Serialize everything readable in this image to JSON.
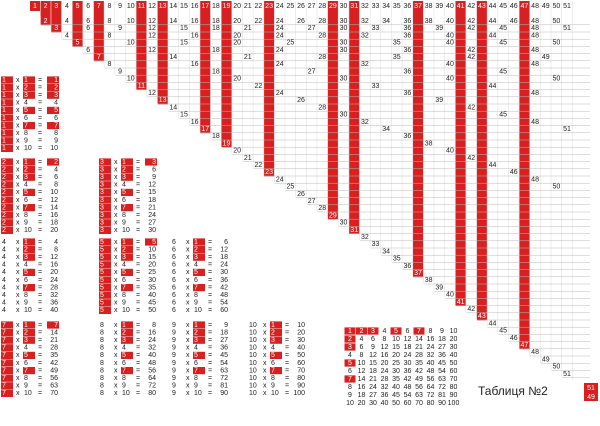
{
  "sheet": {
    "title": "Таблиця №2",
    "badge": [
      "51",
      "49"
    ],
    "times": "x",
    "equals": "=",
    "header": [
      1,
      2,
      3,
      4,
      5,
      6,
      7,
      8,
      9,
      10,
      11,
      12,
      13,
      14,
      15,
      16,
      17,
      18,
      19,
      20,
      21,
      22,
      23,
      24,
      25,
      26,
      27,
      28,
      29,
      30,
      31,
      32,
      33,
      34,
      35,
      36,
      37,
      38,
      39,
      40,
      41,
      42,
      43,
      44,
      45,
      46,
      47,
      48,
      49,
      50,
      51
    ],
    "rows": [
      [
        2,
        4,
        6,
        8,
        10,
        12,
        14,
        16,
        18,
        20,
        22,
        24,
        26,
        28,
        30,
        32,
        34,
        36,
        38,
        40,
        42,
        44,
        46,
        48,
        50
      ],
      [
        3,
        6,
        9,
        12,
        15,
        18,
        21,
        24,
        27,
        30,
        33,
        36,
        39,
        42,
        45,
        48,
        51
      ],
      [
        4,
        8,
        12,
        16,
        20,
        24,
        28,
        32,
        36,
        40,
        44,
        48
      ],
      [
        5,
        10,
        15,
        20,
        25,
        30,
        35,
        40,
        45,
        50
      ],
      [
        6,
        12,
        18,
        24,
        30,
        36,
        42,
        48
      ],
      [
        7,
        14,
        21,
        28,
        35,
        42,
        49
      ],
      [
        8,
        16,
        24,
        32,
        40,
        48
      ],
      [
        9,
        18,
        27,
        36,
        45
      ],
      [
        10,
        20,
        30,
        40,
        50
      ],
      [
        11,
        22,
        33,
        44
      ],
      [
        12,
        24,
        36,
        48
      ],
      [
        13,
        26,
        39
      ],
      [
        14,
        28,
        42
      ],
      [
        15,
        30,
        45
      ],
      [
        16,
        32,
        48
      ],
      [
        17,
        34,
        51
      ],
      [
        18,
        36
      ],
      [
        19,
        38
      ],
      [
        20,
        40
      ],
      [
        21,
        42
      ],
      [
        22,
        44
      ],
      [
        23,
        46
      ],
      [
        24,
        48
      ],
      [
        25,
        50
      ],
      [
        26
      ],
      [
        27
      ],
      [
        28
      ],
      [
        29
      ],
      [
        30
      ],
      [
        31
      ],
      [
        32
      ],
      [
        33
      ],
      [
        34
      ],
      [
        35
      ],
      [
        36
      ],
      [
        37
      ],
      [
        38
      ],
      [
        39
      ],
      [
        40
      ],
      [
        41
      ],
      [
        42
      ],
      [
        43
      ],
      [
        44
      ],
      [
        45
      ],
      [
        46
      ],
      [
        47
      ],
      [
        48
      ],
      [
        49
      ],
      [
        50
      ],
      [
        51
      ]
    ],
    "factors": [
      1,
      2,
      3,
      4,
      5,
      6,
      7,
      8,
      9,
      10
    ],
    "tables": [
      {
        "n": 1,
        "products": [
          1,
          2,
          3,
          4,
          5,
          6,
          7,
          8,
          9,
          10
        ]
      },
      {
        "n": 2,
        "products": [
          2,
          4,
          6,
          8,
          10,
          12,
          14,
          16,
          18,
          20
        ]
      },
      {
        "n": 3,
        "products": [
          3,
          6,
          9,
          12,
          15,
          18,
          21,
          24,
          27,
          30
        ]
      },
      {
        "n": 4,
        "products": [
          4,
          8,
          12,
          16,
          20,
          24,
          28,
          32,
          36,
          40
        ]
      },
      {
        "n": 5,
        "products": [
          5,
          10,
          15,
          20,
          25,
          30,
          35,
          40,
          45,
          50
        ]
      },
      {
        "n": 6,
        "products": [
          6,
          12,
          18,
          24,
          30,
          36,
          42,
          48,
          54,
          60
        ]
      },
      {
        "n": 7,
        "products": [
          7,
          14,
          21,
          28,
          35,
          42,
          49,
          56,
          63,
          70
        ]
      },
      {
        "n": 8,
        "products": [
          8,
          16,
          24,
          32,
          40,
          48,
          56,
          64,
          72,
          80
        ]
      },
      {
        "n": 9,
        "products": [
          9,
          18,
          27,
          36,
          45,
          54,
          63,
          72,
          81,
          90
        ]
      },
      {
        "n": 10,
        "products": [
          10,
          20,
          30,
          40,
          50,
          60,
          70,
          80,
          90,
          100
        ]
      }
    ]
  }
}
